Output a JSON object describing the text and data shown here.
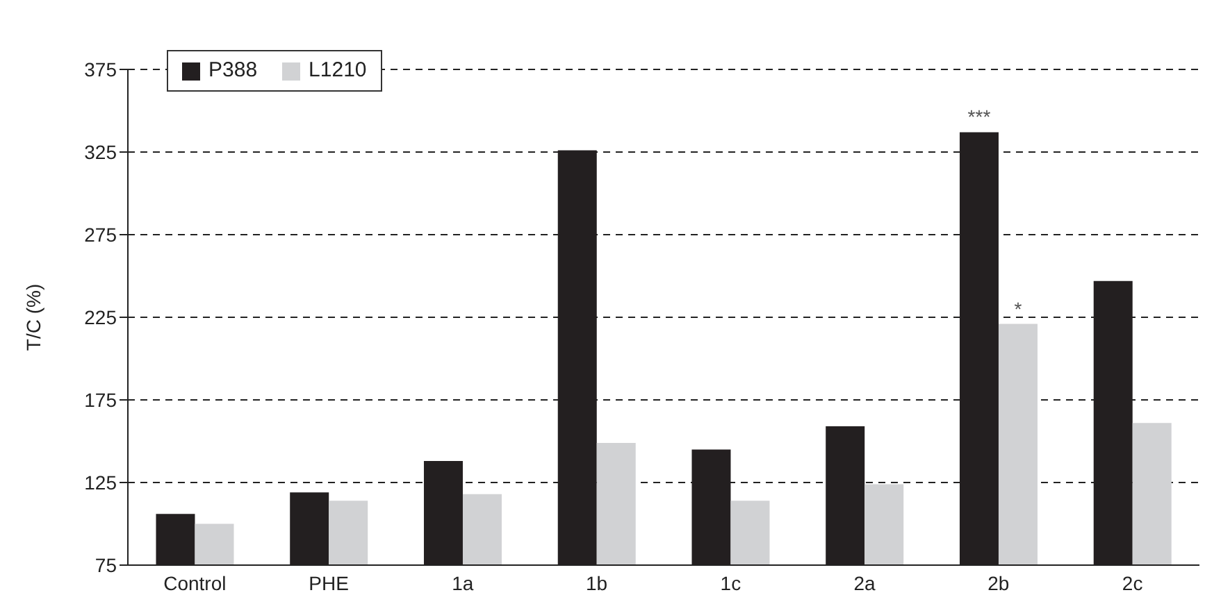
{
  "chart_data": {
    "type": "bar",
    "ylabel": "T/C (%)",
    "categories": [
      "Control",
      "PHE",
      "1a",
      "1b",
      "1c",
      "2a",
      "2b",
      "2c"
    ],
    "series": [
      {
        "name": "P388",
        "color": "#231f20",
        "values": [
          106,
          119,
          138,
          326,
          145,
          159,
          337,
          247
        ]
      },
      {
        "name": "L1210",
        "color": "#d1d2d4",
        "values": [
          100,
          114,
          118,
          149,
          114,
          124,
          221,
          161
        ]
      }
    ],
    "ylim": [
      75,
      375
    ],
    "yticks": [
      75,
      125,
      175,
      225,
      275,
      325,
      375
    ],
    "grid": "y",
    "legend": "top left",
    "annotations": [
      {
        "text": "***",
        "x": "2b",
        "y": 337
      },
      {
        "text": "*",
        "x": "2b",
        "y": 221
      }
    ]
  }
}
